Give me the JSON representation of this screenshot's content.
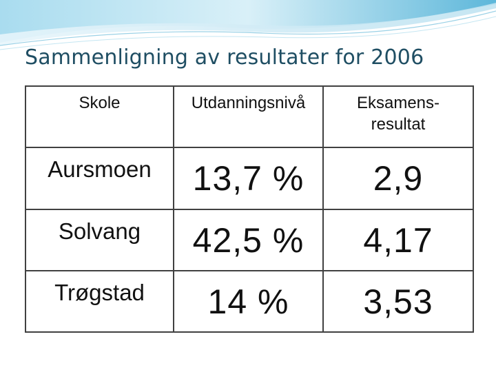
{
  "title": "Sammenligning av resultater for 2006",
  "table": {
    "headers": [
      "Skole",
      "Utdanningsnivå",
      "Eksamens-\nresultat"
    ],
    "rows": [
      {
        "school": "Aursmoen",
        "level": "13,7 %",
        "result": "2,9"
      },
      {
        "school": "Solvang",
        "level": "42,5 %",
        "result": "4,17"
      },
      {
        "school": "Trøgstad",
        "level": "14 %",
        "result": "3,53"
      }
    ]
  },
  "colors": {
    "title": "#1f4e63",
    "wave_light": "#cfe9f4",
    "wave_mid": "#8fcfe6",
    "wave_dark": "#4aa8cf",
    "border": "#404040"
  }
}
